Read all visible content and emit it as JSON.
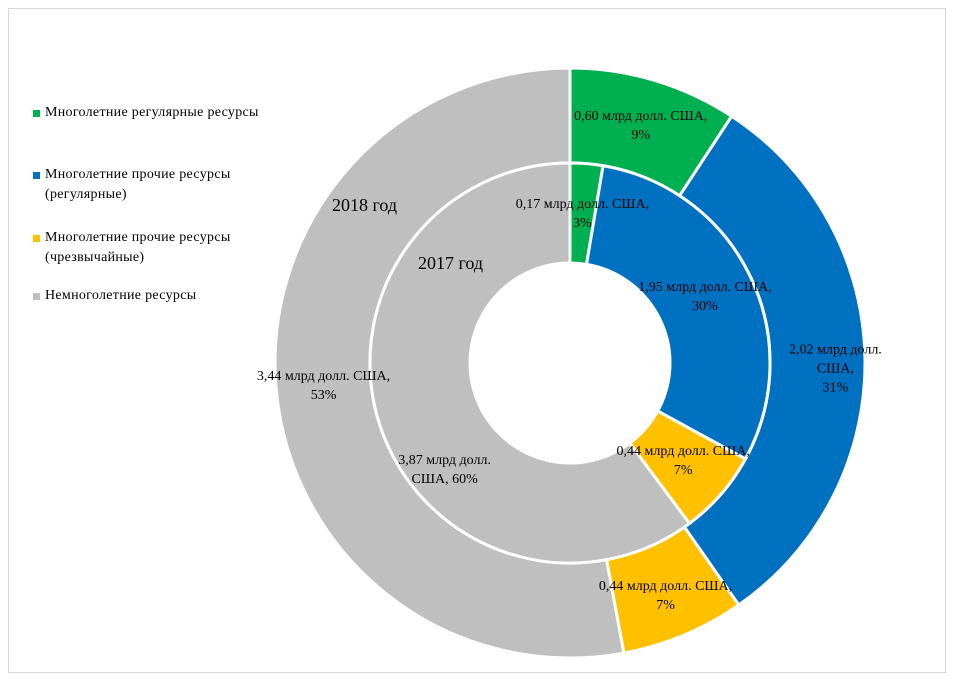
{
  "chart_data": {
    "type": "donut",
    "categories": [
      "Многолетние регулярные ресурсы",
      "Многолетние прочие ресурсы\n(регулярные)",
      "Многолетние прочие ресурсы\n(чрезвычайные)",
      "Немноголетние  ресурсы"
    ],
    "colors": [
      "#00b050",
      "#0070c0",
      "#ffc000",
      "#bfbfbf"
    ],
    "series": [
      {
        "name": "2018 год",
        "values": [
          0.6,
          2.02,
          0.44,
          3.44
        ],
        "value_labels": [
          "0,60 млрд долл. США,\n9%",
          "2,02 млрд долл. США,\n31%",
          "0,44 млрд долл. США,\n7%",
          "3,44 млрд долл. США,\n53%"
        ]
      },
      {
        "name": "2017 год",
        "values": [
          0.17,
          1.95,
          0.44,
          3.87
        ],
        "value_labels": [
          "0,17 млрд долл. США,\n3%",
          "1,95 млрд долл. США,\n30%",
          "0,44 млрд долл. США,\n7%",
          "3,87 млрд долл.\nСША, 60%"
        ]
      }
    ],
    "legend": "left"
  }
}
